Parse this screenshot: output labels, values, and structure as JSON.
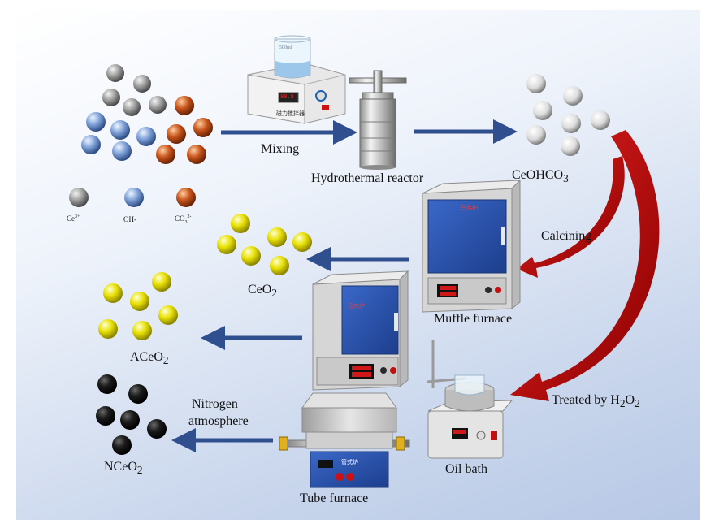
{
  "diagram": {
    "step_labels": {
      "mixing": "Mixing",
      "hydrothermal_reactor": "Hydrothermal reactor",
      "calcining": "Calcining",
      "muffle_furnace": "Muffle furnace",
      "oil_bath": "Oil bath",
      "tube_furnace": "Tube furnace",
      "nitrogen_line1": "Nitrogen",
      "nitrogen_line2": "atmosphere",
      "treated_by": "Treated by H",
      "treated_sub1": "2",
      "treated_mid": "O",
      "treated_sub2": "2"
    },
    "products": {
      "ceohco3_main": "CeOHCO",
      "ceohco3_sub": "3",
      "ceo2_main": "CeO",
      "ceo2_sub": "2",
      "aceo2_main": "ACeO",
      "aceo2_sub": "2",
      "nceo2_main": "NCeO",
      "nceo2_sub": "2"
    },
    "legend": {
      "ce": "Ce",
      "ce_sup": "3+",
      "oh": "OH-",
      "co3": "CO",
      "co3_sub": "3",
      "co3_sup": "2-"
    },
    "device_text": {
      "stirrer_display": "88.8",
      "stirrer_label": "磁力搅拌器",
      "beaker_scale": "500ml",
      "muffle_plate": "马弗炉",
      "tube_plate": "管式炉"
    },
    "colors": {
      "arrow_blue": "#2f4f8f",
      "curve_red": "#c00000",
      "furnace_blue": "#2e57b3",
      "ce_gray": "#8e8e8e",
      "oh_blue": "#7fa2d8",
      "co3_orange": "#c8541c",
      "ceo2_yellow": "#e8e000",
      "nceo2_black": "#151515",
      "ceohco3_white": "#e9e9e9"
    }
  }
}
